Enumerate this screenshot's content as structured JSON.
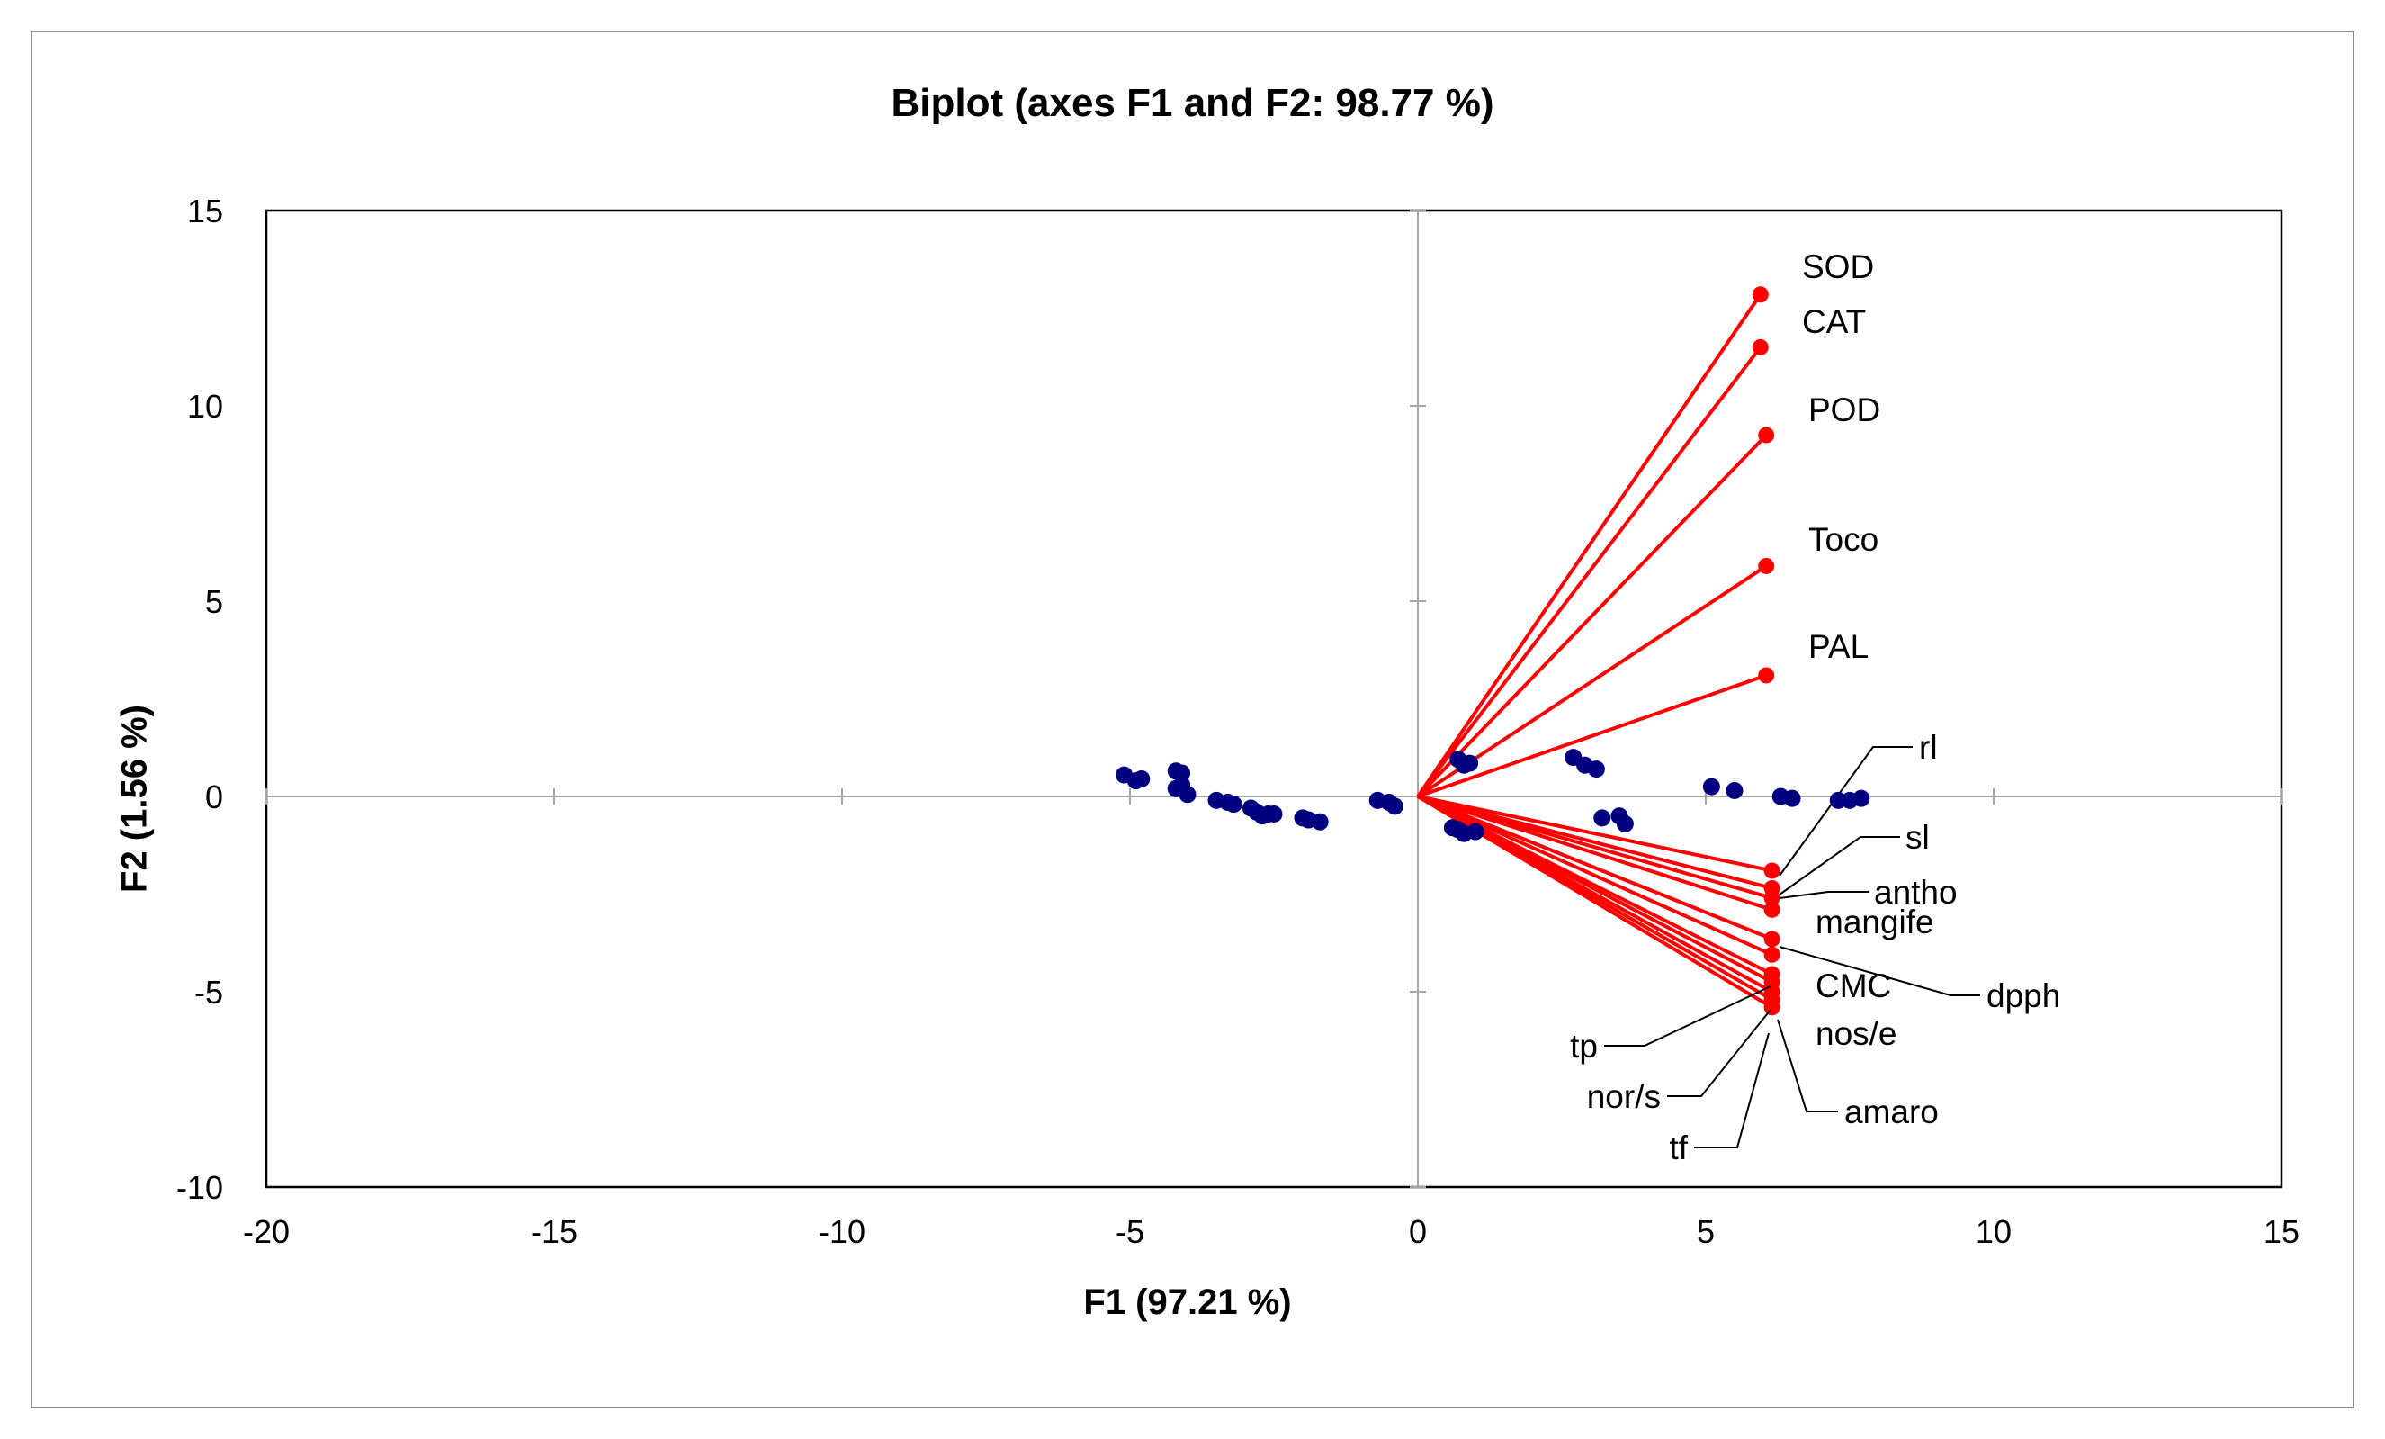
{
  "chart_data": {
    "type": "scatter",
    "title": "Biplot (axes F1 and F2: 98.77 %)",
    "xlabel": "F1 (97.21 %)",
    "ylabel": "F2 (1.56 %)",
    "xlim": [
      -20,
      15
    ],
    "ylim": [
      -10,
      15
    ],
    "xticks": [
      -20,
      -15,
      -10,
      -5,
      0,
      5,
      10,
      15
    ],
    "yticks": [
      -10,
      -5,
      0,
      5,
      10,
      15
    ],
    "colors": {
      "observations": "#000080",
      "variables": "#ff0000",
      "axis": "#000000",
      "zero_lines": "#a6a6a6"
    },
    "observations": [
      [
        -5.1,
        0.55
      ],
      [
        -4.9,
        0.4
      ],
      [
        -4.8,
        0.45
      ],
      [
        -4.2,
        0.65
      ],
      [
        -4.1,
        0.6
      ],
      [
        -4.2,
        0.2
      ],
      [
        -4.1,
        0.3
      ],
      [
        -4.0,
        0.05
      ],
      [
        -3.5,
        -0.1
      ],
      [
        -3.3,
        -0.15
      ],
      [
        -3.2,
        -0.2
      ],
      [
        -2.9,
        -0.3
      ],
      [
        -2.8,
        -0.4
      ],
      [
        -2.7,
        -0.5
      ],
      [
        -2.6,
        -0.45
      ],
      [
        -2.5,
        -0.45
      ],
      [
        -2.0,
        -0.55
      ],
      [
        -1.9,
        -0.6
      ],
      [
        -1.7,
        -0.65
      ],
      [
        -0.7,
        -0.1
      ],
      [
        -0.5,
        -0.15
      ],
      [
        -0.4,
        -0.25
      ],
      [
        0.6,
        -0.8
      ],
      [
        0.7,
        -0.85
      ],
      [
        0.8,
        -0.95
      ],
      [
        1.0,
        -0.9
      ],
      [
        0.7,
        0.95
      ],
      [
        0.8,
        0.8
      ],
      [
        0.9,
        0.85
      ],
      [
        2.7,
        1.0
      ],
      [
        2.9,
        0.8
      ],
      [
        3.1,
        0.7
      ],
      [
        3.2,
        -0.55
      ],
      [
        3.5,
        -0.5
      ],
      [
        3.6,
        -0.7
      ],
      [
        5.1,
        0.25
      ],
      [
        5.5,
        0.15
      ],
      [
        6.3,
        0.0
      ],
      [
        6.5,
        -0.05
      ],
      [
        7.3,
        -0.1
      ],
      [
        7.5,
        -0.1
      ],
      [
        7.7,
        -0.05
      ]
    ],
    "variables": [
      {
        "name": "SOD",
        "x": 5.95,
        "y": 12.85
      },
      {
        "name": "CAT",
        "x": 5.95,
        "y": 11.5
      },
      {
        "name": "POD",
        "x": 6.05,
        "y": 9.25
      },
      {
        "name": "Toco",
        "x": 6.05,
        "y": 5.9
      },
      {
        "name": "PAL",
        "x": 6.05,
        "y": 3.1
      },
      {
        "name": "rl",
        "x": 6.15,
        "y": -1.9
      },
      {
        "name": "sl",
        "x": 6.15,
        "y": -2.35
      },
      {
        "name": "antho",
        "x": 6.15,
        "y": -2.6
      },
      {
        "name": "mangife",
        "x": 6.15,
        "y": -2.9
      },
      {
        "name": "dpph",
        "x": 6.15,
        "y": -3.65
      },
      {
        "name": "CMC",
        "x": 6.15,
        "y": -4.05
      },
      {
        "name": "tp",
        "x": 6.15,
        "y": -4.55
      },
      {
        "name": "nos/e",
        "x": 6.15,
        "y": -4.75
      },
      {
        "name": "nor/s",
        "x": 6.15,
        "y": -5.0
      },
      {
        "name": "amaro",
        "x": 6.15,
        "y": -5.2
      },
      {
        "name": "tf",
        "x": 6.15,
        "y": -5.4
      }
    ]
  }
}
